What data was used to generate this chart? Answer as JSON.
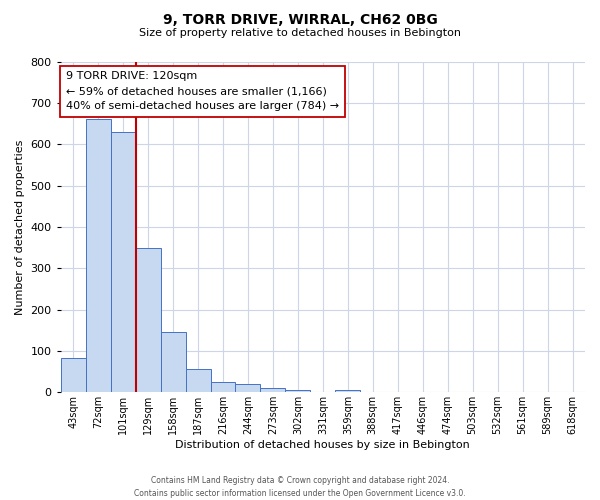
{
  "title": "9, TORR DRIVE, WIRRAL, CH62 0BG",
  "subtitle": "Size of property relative to detached houses in Bebington",
  "xlabel": "Distribution of detached houses by size in Bebington",
  "ylabel": "Number of detached properties",
  "bar_labels": [
    "43sqm",
    "72sqm",
    "101sqm",
    "129sqm",
    "158sqm",
    "187sqm",
    "216sqm",
    "244sqm",
    "273sqm",
    "302sqm",
    "331sqm",
    "359sqm",
    "388sqm",
    "417sqm",
    "446sqm",
    "474sqm",
    "503sqm",
    "532sqm",
    "561sqm",
    "589sqm",
    "618sqm"
  ],
  "bar_values": [
    82,
    660,
    630,
    348,
    147,
    57,
    25,
    20,
    10,
    5,
    0,
    6,
    0,
    0,
    0,
    0,
    0,
    0,
    0,
    0,
    0
  ],
  "bar_color": "#c6d9f0",
  "bar_edge_color": "#4472c4",
  "vline_color": "#c00000",
  "annotation_line1": "9 TORR DRIVE: 120sqm",
  "annotation_line2": "← 59% of detached houses are smaller (1,166)",
  "annotation_line3": "40% of semi-detached houses are larger (784) →",
  "annotation_box_color": "#ffffff",
  "annotation_box_edge": "#c00000",
  "ylim": [
    0,
    800
  ],
  "yticks": [
    0,
    100,
    200,
    300,
    400,
    500,
    600,
    700,
    800
  ],
  "footer_line1": "Contains HM Land Registry data © Crown copyright and database right 2024.",
  "footer_line2": "Contains public sector information licensed under the Open Government Licence v3.0.",
  "bg_color": "#ffffff",
  "grid_color": "#cdd6e8"
}
